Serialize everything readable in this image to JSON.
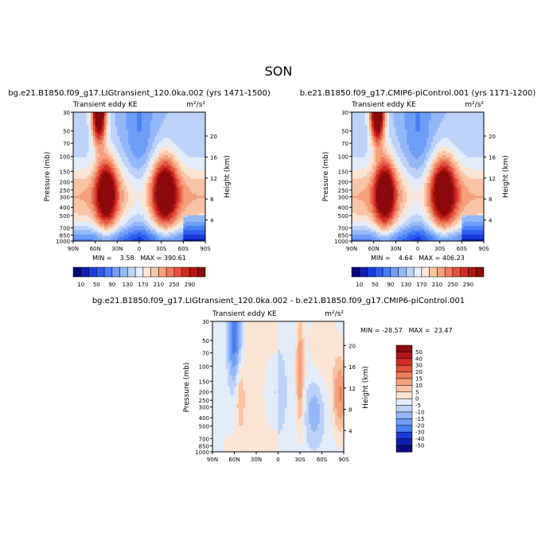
{
  "figure": {
    "season": "SON"
  },
  "colorbar_full": {
    "labels": [
      "10",
      "50",
      "90",
      "130",
      "170",
      "210",
      "250",
      "290"
    ],
    "colors": [
      "#08087a",
      "#0d1fb0",
      "#1a3ad8",
      "#2f5df0",
      "#4a7ef5",
      "#6e9cf7",
      "#93b8f8",
      "#bcd2f8",
      "#e3ecfb",
      "#fbe4d3",
      "#f9c3a5",
      "#f5a07d",
      "#ee7a5b",
      "#e2523f",
      "#cf2c26",
      "#b01616",
      "#8b0a0a"
    ]
  },
  "colorbar_diff": {
    "labels": [
      "50",
      "40",
      "30",
      "20",
      "15",
      "10",
      "5",
      "0",
      "-5",
      "-10",
      "-15",
      "-20",
      "-30",
      "-40",
      "-50"
    ],
    "colors": [
      "#8b0a0a",
      "#b01616",
      "#cf2c26",
      "#e2523f",
      "#ee7a5b",
      "#f5a07d",
      "#f9c3a5",
      "#fbe4d3",
      "#e3ecfb",
      "#bcd2f8",
      "#93b8f8",
      "#6e9cf7",
      "#4a7ef5",
      "#1a3ad8",
      "#0d1fb0",
      "#08087a"
    ]
  },
  "chart_data": [
    {
      "type": "heatmap",
      "title": "bg.e21.B1850.f09_g17.LIGtransient_120.0ka.002 (yrs 1471-1500)",
      "left_string": "Transient eddy KE",
      "units": "m²/s²",
      "ylabel": "Pressure (mb)",
      "y2label": "Height (km)",
      "x_ticks": [
        "90N",
        "60N",
        "30N",
        "0",
        "30S",
        "60S",
        "90S"
      ],
      "y_ticks": [
        "30",
        "50",
        "70",
        "100",
        "150",
        "200",
        "250",
        "300",
        "400",
        "500",
        "700",
        "850",
        "1000"
      ],
      "height_ticks": [
        "20",
        "16",
        "12",
        "8",
        "4"
      ],
      "min_max": "MIN =    3.58   MAX = 390.61",
      "min": 3.58,
      "max": 390.61,
      "features": [
        {
          "lat": -35,
          "p": 260,
          "value": 270,
          "sx": 12,
          "sy": 0.22
        },
        {
          "lat": 45,
          "p": 270,
          "value": 260,
          "sx": 10,
          "sy": 0.22
        },
        {
          "lat": 55,
          "p": 32,
          "value": 330,
          "sx": 7,
          "sy": 0.18
        }
      ]
    },
    {
      "type": "heatmap",
      "title": "b.e21.B1850.f09_g17.CMIP6-piControl.001 (yrs 1171-1200)",
      "left_string": "Transient eddy KE",
      "units": "m²/s²",
      "ylabel": "Pressure (mb)",
      "y2label": "Height (km)",
      "x_ticks": [
        "90N",
        "60N",
        "30N",
        "0",
        "30S",
        "60S",
        "90S"
      ],
      "y_ticks": [
        "30",
        "50",
        "70",
        "100",
        "150",
        "200",
        "250",
        "300",
        "400",
        "500",
        "700",
        "850",
        "1000"
      ],
      "height_ticks": [
        "20",
        "16",
        "12",
        "8",
        "4"
      ],
      "min_max": "MIN =    4.64   MAX = 406.23",
      "min": 4.64,
      "max": 406.23,
      "features": [
        {
          "lat": -35,
          "p": 260,
          "value": 270,
          "sx": 12,
          "sy": 0.22
        },
        {
          "lat": 45,
          "p": 270,
          "value": 265,
          "sx": 10,
          "sy": 0.22
        },
        {
          "lat": 55,
          "p": 32,
          "value": 340,
          "sx": 7,
          "sy": 0.18
        }
      ]
    },
    {
      "type": "heatmap",
      "title": "bg.e21.B1850.f09_g17.LIGtransient_120.0ka.002 - b.e21.B1850.f09_g17.CMIP6-piControl.001",
      "left_string": "Transient eddy KE",
      "units": "m²/s²",
      "ylabel": "Pressure (mb)",
      "y2label": "Height (km)",
      "x_ticks": [
        "90N",
        "60N",
        "30N",
        "0",
        "30S",
        "60S",
        "90S"
      ],
      "y_ticks": [
        "30",
        "50",
        "70",
        "100",
        "150",
        "200",
        "250",
        "300",
        "400",
        "500",
        "700",
        "850",
        "1000"
      ],
      "height_ticks": [
        "20",
        "16",
        "12",
        "8",
        "4"
      ],
      "min_max": "MIN = -28.57   MAX =  23.47",
      "min": -28.57,
      "max": 23.47,
      "features": [
        {
          "lat": -85,
          "p": 220,
          "value": 18,
          "sx": 7,
          "sy": 0.25
        },
        {
          "lat": -30,
          "p": 120,
          "value": 18,
          "sx": 4,
          "sy": 0.35
        },
        {
          "lat": -60,
          "p": 60,
          "value": 6,
          "sx": 15,
          "sy": 0.4
        },
        {
          "lat": 60,
          "p": 40,
          "value": -25,
          "sx": 7,
          "sy": 0.35
        },
        {
          "lat": 52,
          "p": 220,
          "value": 12,
          "sx": 4,
          "sy": 0.2
        },
        {
          "lat": -50,
          "p": 330,
          "value": -12,
          "sx": 9,
          "sy": 0.2
        },
        {
          "lat": 5,
          "p": 200,
          "value": -8,
          "sx": 10,
          "sy": 0.25
        }
      ]
    }
  ]
}
